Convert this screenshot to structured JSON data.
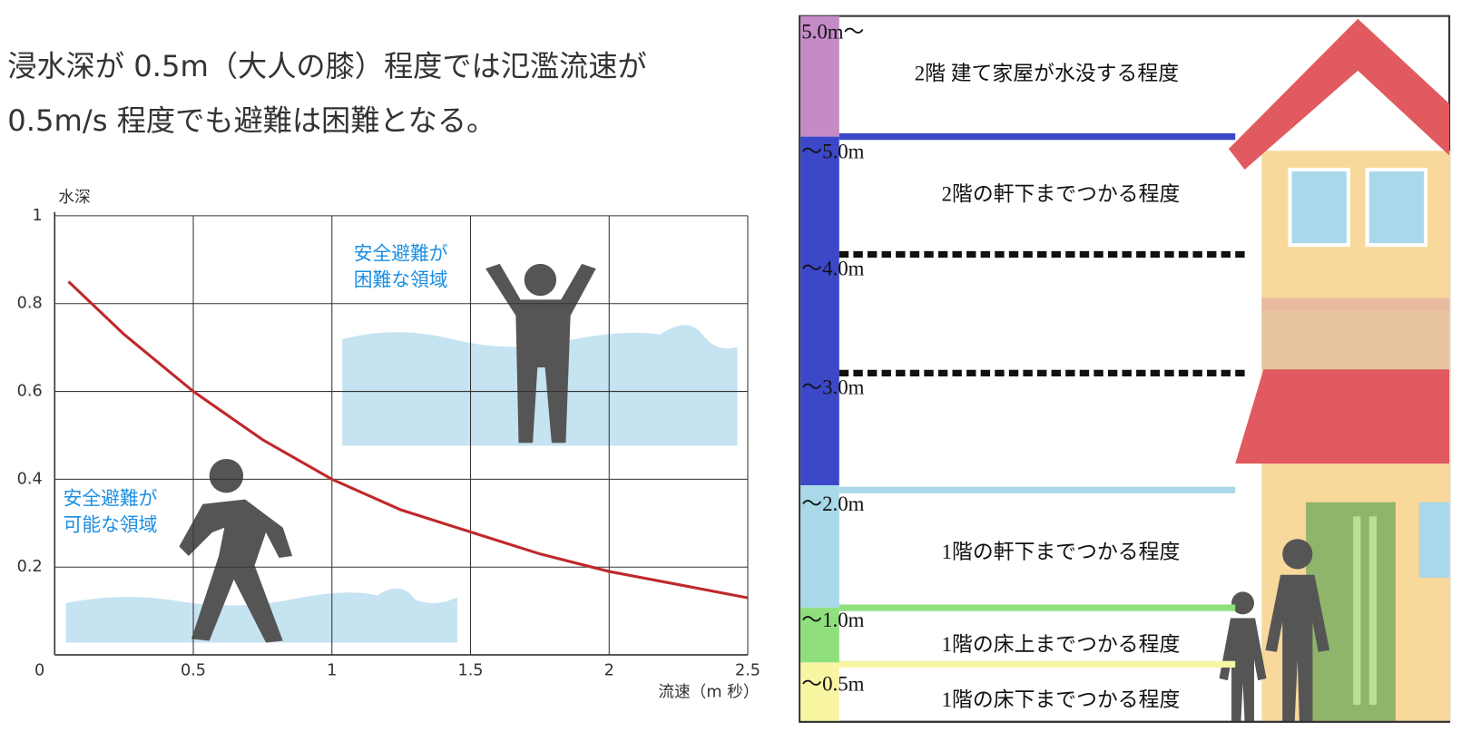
{
  "heading": {
    "lines": [
      "浸水深が 0.5m（大人の膝）程度では氾濫流速が",
      "0.5m/s 程度でも避難は困難となる。"
    ]
  },
  "chart_data": {
    "type": "line",
    "x_label": "流速（m 秒）",
    "y_label": "水深",
    "x": [
      0.05,
      0.25,
      0.5,
      0.75,
      1,
      1.25,
      1.5,
      1.75,
      2,
      2.25,
      2.5
    ],
    "series": [
      {
        "color": "#c0282a",
        "values": [
          0.85,
          0.73,
          0.6,
          0.49,
          0.4,
          0.33,
          0.28,
          0.23,
          0.19,
          0.16,
          0.13
        ]
      }
    ],
    "xlim": [
      0,
      2.5
    ],
    "ylim": [
      0,
      1
    ],
    "xticks": [
      0,
      0.5,
      1,
      1.5,
      2,
      2.5
    ],
    "yticks": [
      0.2,
      0.4,
      0.6,
      0.8,
      1
    ],
    "grid": true,
    "annotations": [
      {
        "lines": [
          "安全避難が",
          "困難な領域"
        ]
      },
      {
        "lines": [
          "安全避難が",
          "可能な領域"
        ]
      }
    ]
  },
  "depth_diagram": {
    "bands": [
      {
        "range": "5.0m〜",
        "description": "2階 建て家屋が水没する程度",
        "color": "#c48bc6"
      },
      {
        "range": "〜5.0m",
        "description": "2階の軒下までつかる程度",
        "color": "#3c48c8"
      },
      {
        "range": "〜4.0m"
      },
      {
        "range": "〜3.0m"
      },
      {
        "range": "〜2.0m",
        "description": "1階の軒下までつかる程度",
        "color": "#a9d9e8"
      },
      {
        "range": "〜1.0m",
        "description": "1階の床上までつかる程度",
        "color": "#8fe07c"
      },
      {
        "range": "〜0.5m",
        "description": "1階の床下までつかる程度",
        "color": "#f8f5a3"
      }
    ]
  }
}
